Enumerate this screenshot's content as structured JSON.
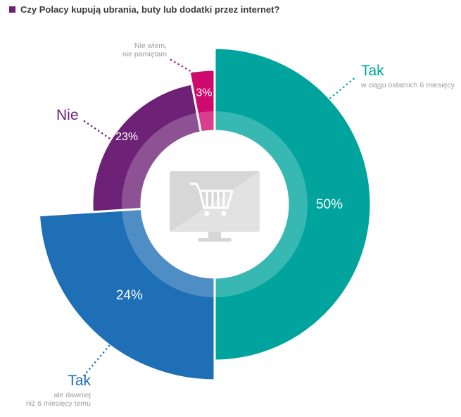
{
  "title": "Czy Polacy kupują ubrania, buty lub dodatki przez internet?",
  "title_bullet_color": "#6E2277",
  "chart_data": {
    "type": "pie",
    "donut": true,
    "title": "Czy Polacy kupują ubrania, buty lub dodatki przez internet?",
    "units": "%",
    "direction": "clockwise",
    "start_angle_deg": 0,
    "inner_radius": 104,
    "slices": [
      {
        "label": "Tak",
        "detail": "w ciągu ostatnich 6 miesięcy",
        "value": 50,
        "percent_label": "50%",
        "color": "#00A49D",
        "outer_radius": 222,
        "label_radius": 163
      },
      {
        "label": "Tak",
        "detail": "ale dawniej niż 6 miesięcy temu",
        "value": 24,
        "percent_label": "24%",
        "color": "#1E6FB5",
        "outer_radius": 250,
        "label_radius": 177
      },
      {
        "label": "Nie",
        "detail": "",
        "value": 23,
        "percent_label": "23%",
        "color": "#6E2277",
        "outer_radius": 174,
        "label_radius": 158
      },
      {
        "label": "Nie wiem, nie pamiętam",
        "detail": "",
        "value": 3,
        "percent_label": "3%",
        "color": "#CF0A6E",
        "outer_radius": 191,
        "label_radius": 160
      }
    ]
  },
  "callouts": {
    "tak_recent": {
      "label": "Tak",
      "sublabel": "w ciągu ostatnich 6 miesięcy"
    },
    "nie": {
      "label": "Nie"
    },
    "nie_wiem": {
      "label_line1": "Nie wiem,",
      "label_line2": "nie pamiętam"
    },
    "tak_earlier": {
      "label": "Tak",
      "sublabel_line1": "ale dawniej",
      "sublabel_line2": "niż 6 miesięcy temu"
    }
  }
}
